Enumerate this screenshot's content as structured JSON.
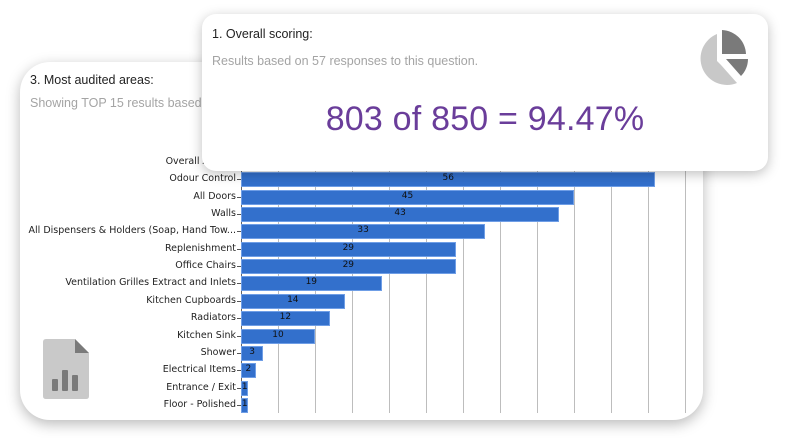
{
  "front_card": {
    "title": "1. Overall scoring:",
    "subtitle": "Results based on 57 responses to this question.",
    "score_text": "803 of 850 = 94.47%",
    "score_color": "#6a3d9a",
    "icon": "pie-chart-icon"
  },
  "back_card": {
    "title": "3. Most audited areas:",
    "subtitle": "Showing TOP 15 results based on",
    "icon": "chart-document-icon"
  },
  "chart_data": {
    "type": "bar",
    "orientation": "horizontal",
    "title": "3. Most audited areas:",
    "xlabel": "",
    "ylabel": "",
    "bar_color": "#3370cc",
    "grid": true,
    "xlim": [
      0,
      60
    ],
    "grid_step": 5,
    "categories": [
      "Overall Appe...",
      "Odour Control",
      "All Doors",
      "Walls",
      "All Dispensers & Holders (Soap, Hand Tow...",
      "Replenishment",
      "Office Chairs",
      "Ventilation Grilles Extract and Inlets",
      "Kitchen Cupboards",
      "Radiators",
      "Kitchen Sink",
      "Shower",
      "Electrical Items",
      "Entrance / Exit",
      "Floor - Polished"
    ],
    "values": [
      null,
      56,
      45,
      43,
      33,
      29,
      29,
      19,
      14,
      12,
      10,
      3,
      2,
      1,
      1
    ],
    "value_labels": [
      "",
      "56",
      "45",
      "43",
      "33",
      "29",
      "29",
      "19",
      "14",
      "12",
      "10",
      "3",
      "2",
      "1",
      "1"
    ]
  }
}
